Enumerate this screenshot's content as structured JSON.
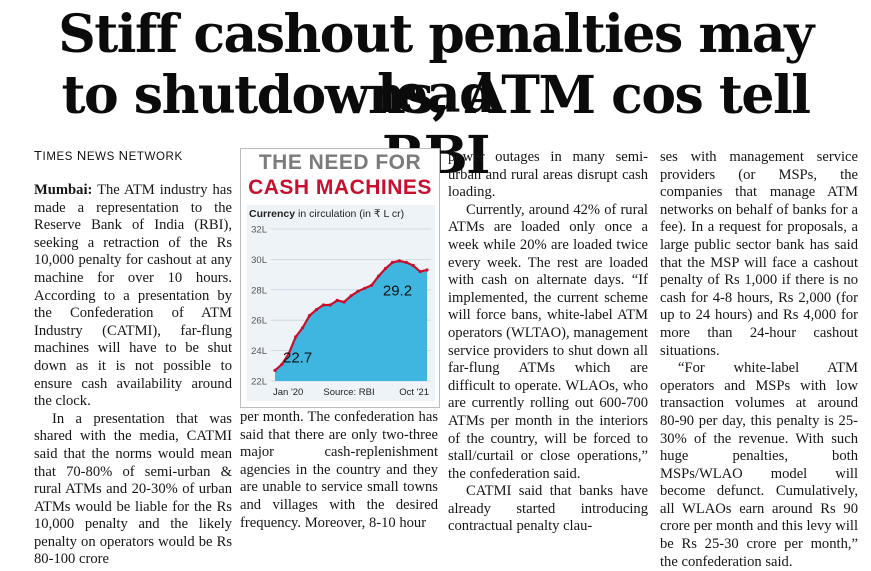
{
  "headline": {
    "line1": "Stiff cashout penalties may lead",
    "line2": "to shutdowns, ATM cos tell RBI"
  },
  "byline": {
    "t": "T",
    "imes": "IMES ",
    "n1": "N",
    "ews": "EWS ",
    "n2": "N",
    "etwork": "ETWORK"
  },
  "article": {
    "dateline": "Mumbai:",
    "p1": "The ATM industry has made a representation to the Reserve Bank of India (RBI), seeking a retraction of the Rs 10,000 penalty for cashout at any machine for over 10 hours. According to a presentation by the Confederation of ATM Industry (CATMI), far-flung machines will have to be shut down as it is not possible to ensure cash availability around the clock.",
    "p2": "In a presentation that was shared with the media, CATMI said that the norms would mean that 70-80% of semi-urban & rural ATMs and 20-30% of urban ATMs would be liable for the Rs 10,000 penalty and the likely penalty on operators would be Rs 80-100 crore",
    "col2_bottom": "per month. The confederation has said that there are only two-three major cash-replenishment agencies in the country and they are unable to service small towns and villages with the desired frequency. Moreover, 8-10 hour",
    "col3_p1": "power outages in many semi-urban and rural areas disrupt cash loading.",
    "col3_p2": "Currently, around 42% of rural ATMs are loaded only once a week while 20% are loaded twice every week. The rest are loaded with cash on alternate days. “If implemented, the current scheme will force bans, white-label ATM operators (WLTAO), management service providers to shut down all far-flung ATMs which are difficult to operate. WLAOs, who are currently rolling out 600-700 ATMs per month in the interiors of the country, will be forced to stall/curtail or close operations,” the confederation said.",
    "col3_p3": "CATMI said that banks have already started introducing contractual penalty clau-",
    "col4_p1": "ses with management service providers (or MSPs, the companies that manage ATM networks on behalf of banks for a fee). In a request for proposals, a large public sector bank has said that the MSP will face a cashout penalty of Rs 1,000 if there is no cash for 4-8 hours, Rs 2,000 (for up to 24 hours) and Rs 4,000 for more than 24-hour cashout situations.",
    "col4_p2": "“For white-label ATM operators and MSPs with low transaction volumes at around 80-90 per day, this penalty is 25-30% of the revenue. With such huge penalties, both MSPs/WLAO model will become defunct. Cumulatively, all WLAOs earn around Rs 90 crore per month and this levy will be Rs 25-30 crore per month,” the confederation said."
  },
  "chart_title": {
    "line1": "THE NEED FOR",
    "line2": "CASH MACHINES",
    "subtitle_bold": "Currency",
    "subtitle_rest": " in circulation (in ₹ L cr)",
    "source": "Source: RBI"
  },
  "chart_data": {
    "type": "area",
    "title": "THE NEED FOR CASH MACHINES",
    "subtitle": "Currency in circulation (in ₹ L cr)",
    "xlabel": "",
    "ylabel": "",
    "ylim": [
      22,
      32
    ],
    "yticks": [
      "22L",
      "24L",
      "26L",
      "28L",
      "30L",
      "32L"
    ],
    "xticks": [
      "Jan '20",
      "Oct '21"
    ],
    "x": [
      "Jan '20",
      "Feb '20",
      "Mar '20",
      "Apr '20",
      "May '20",
      "Jun '20",
      "Jul '20",
      "Aug '20",
      "Sep '20",
      "Oct '20",
      "Nov '20",
      "Dec '20",
      "Jan '21",
      "Feb '21",
      "Mar '21",
      "Apr '21",
      "May '21",
      "Jun '21",
      "Jul '21",
      "Aug '21",
      "Sep '21",
      "Oct '21",
      "Nov '21"
    ],
    "values": [
      22.7,
      23.1,
      23.8,
      24.9,
      25.5,
      26.3,
      26.7,
      27.0,
      27.0,
      27.3,
      27.2,
      27.6,
      27.9,
      28.1,
      28.3,
      28.9,
      29.4,
      29.8,
      29.9,
      29.8,
      29.6,
      29.2,
      29.3
    ],
    "annotations": [
      {
        "label": "22.7",
        "x": "Jan '20",
        "y": 22.7
      },
      {
        "label": "29.2",
        "x": "Oct '21",
        "y": 29.2
      }
    ],
    "colors": {
      "fill": "#3fb6e0",
      "line": "#c8102e",
      "panel": "#eef3f8"
    },
    "grid": true
  }
}
